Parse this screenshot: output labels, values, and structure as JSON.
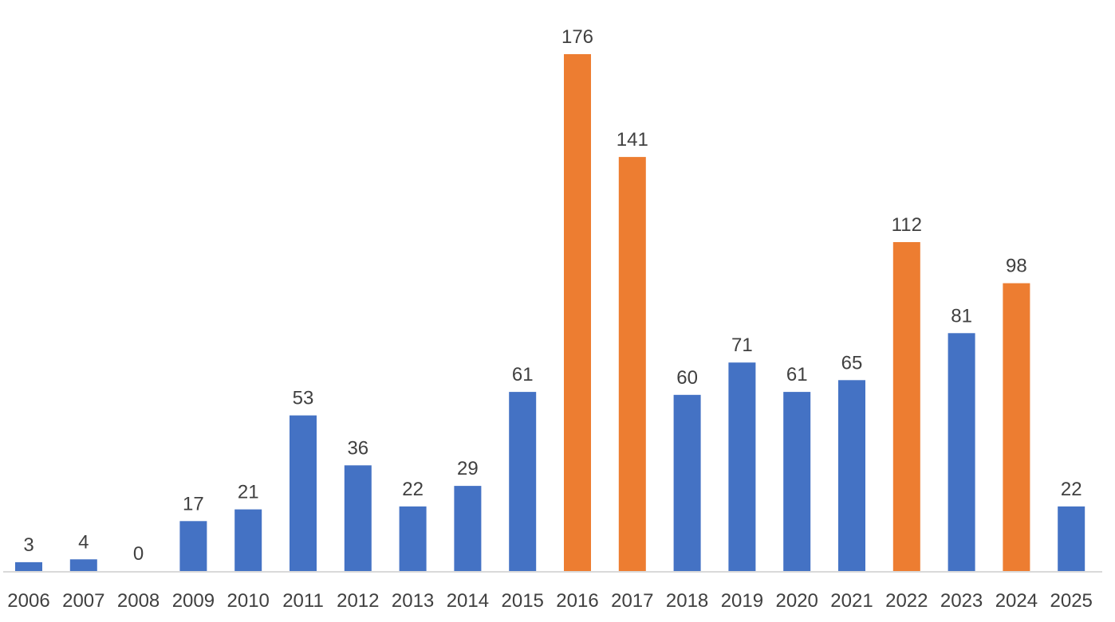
{
  "chart_data": {
    "type": "bar",
    "categories": [
      "2006",
      "2007",
      "2008",
      "2009",
      "2010",
      "2011",
      "2012",
      "2013",
      "2014",
      "2015",
      "2016",
      "2017",
      "2018",
      "2019",
      "2020",
      "2021",
      "2022",
      "2023",
      "2024",
      "2025"
    ],
    "values": [
      3,
      4,
      0,
      17,
      21,
      53,
      36,
      22,
      29,
      61,
      176,
      141,
      60,
      71,
      61,
      65,
      112,
      81,
      98,
      22
    ],
    "highlighted": [
      false,
      false,
      false,
      false,
      false,
      false,
      false,
      false,
      false,
      false,
      true,
      true,
      false,
      false,
      false,
      false,
      true,
      false,
      true,
      false
    ],
    "colors": {
      "default": "#4472C4",
      "highlight": "#ED7D31",
      "axis": "#D9D9D9"
    },
    "title": "",
    "xlabel": "",
    "ylabel": "",
    "ylim": [
      0,
      176
    ],
    "grid": false,
    "legend": "none",
    "data_labels": true
  }
}
